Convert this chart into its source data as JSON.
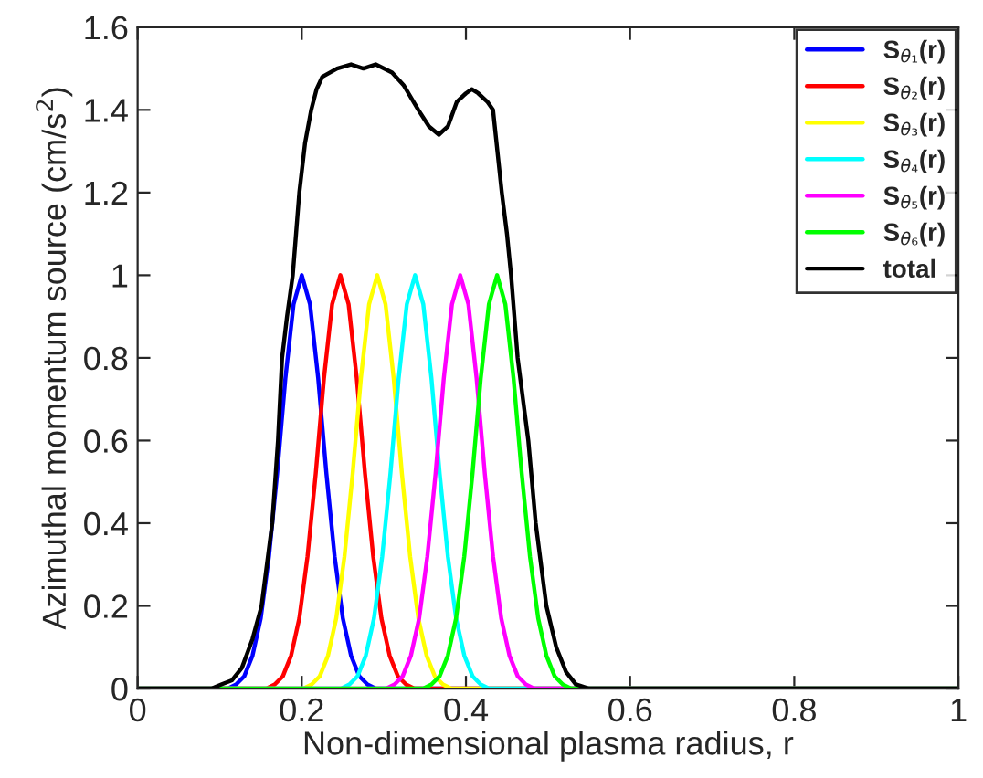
{
  "chart_data": {
    "type": "line",
    "xlabel": "Non-dimensional plasma radius, r",
    "ylabel": "Azimuthal momentum source (cm/s$^{2}$)",
    "xlim": [
      0,
      1
    ],
    "ylim": [
      0,
      1.6
    ],
    "xticks": [
      0,
      0.2,
      0.4,
      0.6,
      0.8,
      1
    ],
    "yticks": [
      0,
      0.2,
      0.4,
      0.6,
      0.8,
      1,
      1.2,
      1.4,
      1.6
    ],
    "grid": false,
    "legend": "top right",
    "line_style": "solid",
    "marker": "none",
    "series": [
      {
        "name": "S$_{θ₁}$(r)",
        "color": "#0000ff",
        "x": [
          0,
          0.11,
          0.12,
          0.13,
          0.14,
          0.15,
          0.16,
          0.17,
          0.18,
          0.19,
          0.2,
          0.21,
          0.22,
          0.23,
          0.24,
          0.25,
          0.26,
          0.27,
          0.28,
          0.29,
          1
        ],
        "values": [
          0,
          0,
          0.01,
          0.03,
          0.08,
          0.17,
          0.32,
          0.52,
          0.75,
          0.93,
          1,
          0.93,
          0.75,
          0.52,
          0.32,
          0.17,
          0.08,
          0.03,
          0.01,
          0,
          0
        ]
      },
      {
        "name": "S$_{θ₂}$(r)",
        "color": "#ff0000",
        "x": [
          0,
          0.157,
          0.167,
          0.177,
          0.187,
          0.197,
          0.207,
          0.217,
          0.227,
          0.237,
          0.247,
          0.257,
          0.267,
          0.277,
          0.287,
          0.297,
          0.307,
          0.317,
          0.327,
          0.337,
          1
        ],
        "values": [
          0,
          0,
          0.01,
          0.03,
          0.08,
          0.17,
          0.32,
          0.52,
          0.75,
          0.93,
          1,
          0.93,
          0.75,
          0.52,
          0.32,
          0.17,
          0.08,
          0.03,
          0.01,
          0,
          0
        ]
      },
      {
        "name": "S$_{θ₃}$(r)",
        "color": "#ffff00",
        "x": [
          0,
          0.202,
          0.212,
          0.222,
          0.232,
          0.242,
          0.252,
          0.262,
          0.272,
          0.282,
          0.292,
          0.302,
          0.312,
          0.322,
          0.332,
          0.342,
          0.352,
          0.362,
          0.372,
          0.382,
          1
        ],
        "values": [
          0,
          0,
          0.01,
          0.03,
          0.08,
          0.17,
          0.32,
          0.52,
          0.75,
          0.93,
          1,
          0.93,
          0.75,
          0.52,
          0.32,
          0.17,
          0.08,
          0.03,
          0.01,
          0,
          0
        ]
      },
      {
        "name": "S$_{θ₄}$(r)",
        "color": "#00ffff",
        "x": [
          0,
          0.248,
          0.258,
          0.268,
          0.278,
          0.288,
          0.298,
          0.308,
          0.318,
          0.328,
          0.338,
          0.348,
          0.358,
          0.368,
          0.378,
          0.388,
          0.398,
          0.408,
          0.418,
          0.428,
          1
        ],
        "values": [
          0,
          0,
          0.01,
          0.03,
          0.08,
          0.17,
          0.32,
          0.52,
          0.75,
          0.93,
          1,
          0.93,
          0.75,
          0.52,
          0.32,
          0.17,
          0.08,
          0.03,
          0.01,
          0,
          0
        ]
      },
      {
        "name": "S$_{θ₅}$(r)",
        "color": "#ff00ff",
        "x": [
          0,
          0.303,
          0.313,
          0.323,
          0.333,
          0.343,
          0.353,
          0.363,
          0.373,
          0.383,
          0.393,
          0.403,
          0.413,
          0.423,
          0.433,
          0.443,
          0.453,
          0.463,
          0.473,
          0.483,
          1
        ],
        "values": [
          0,
          0,
          0.01,
          0.03,
          0.08,
          0.17,
          0.32,
          0.52,
          0.75,
          0.93,
          1,
          0.93,
          0.75,
          0.52,
          0.32,
          0.17,
          0.08,
          0.03,
          0.01,
          0,
          0
        ]
      },
      {
        "name": "S$_{θ₆}$(r)",
        "color": "#00ff00",
        "x": [
          0,
          0.348,
          0.358,
          0.368,
          0.378,
          0.388,
          0.398,
          0.408,
          0.418,
          0.428,
          0.438,
          0.448,
          0.458,
          0.468,
          0.478,
          0.488,
          0.498,
          0.508,
          0.518,
          0.528,
          1
        ],
        "values": [
          0,
          0,
          0.01,
          0.03,
          0.08,
          0.17,
          0.32,
          0.52,
          0.75,
          0.93,
          1,
          0.93,
          0.75,
          0.52,
          0.32,
          0.17,
          0.08,
          0.03,
          0.01,
          0,
          0
        ]
      },
      {
        "name": "total",
        "color": "#000000",
        "x": [
          0,
          0.09,
          0.102,
          0.115,
          0.127,
          0.14,
          0.151,
          0.164,
          0.171,
          0.176,
          0.182,
          0.189,
          0.197,
          0.204,
          0.2115,
          0.218,
          0.225,
          0.243,
          0.26,
          0.275,
          0.29,
          0.31,
          0.324,
          0.342,
          0.355,
          0.367,
          0.378,
          0.389,
          0.4,
          0.407,
          0.415,
          0.426,
          0.433,
          0.4437,
          0.45,
          0.455,
          0.463,
          0.476,
          0.485,
          0.498,
          0.51,
          0.522,
          0.534,
          0.55,
          1
        ],
        "values": [
          0,
          0,
          0.01,
          0.02,
          0.05,
          0.12,
          0.2,
          0.4,
          0.6,
          0.8,
          0.9,
          1.0,
          1.2,
          1.32,
          1.4,
          1.45,
          1.48,
          1.5,
          1.51,
          1.5,
          1.51,
          1.49,
          1.46,
          1.4,
          1.36,
          1.34,
          1.36,
          1.42,
          1.44,
          1.45,
          1.44,
          1.42,
          1.4,
          1.2,
          1.1,
          1.0,
          0.8,
          0.6,
          0.4,
          0.2,
          0.1,
          0.04,
          0.01,
          0,
          0
        ]
      }
    ]
  }
}
